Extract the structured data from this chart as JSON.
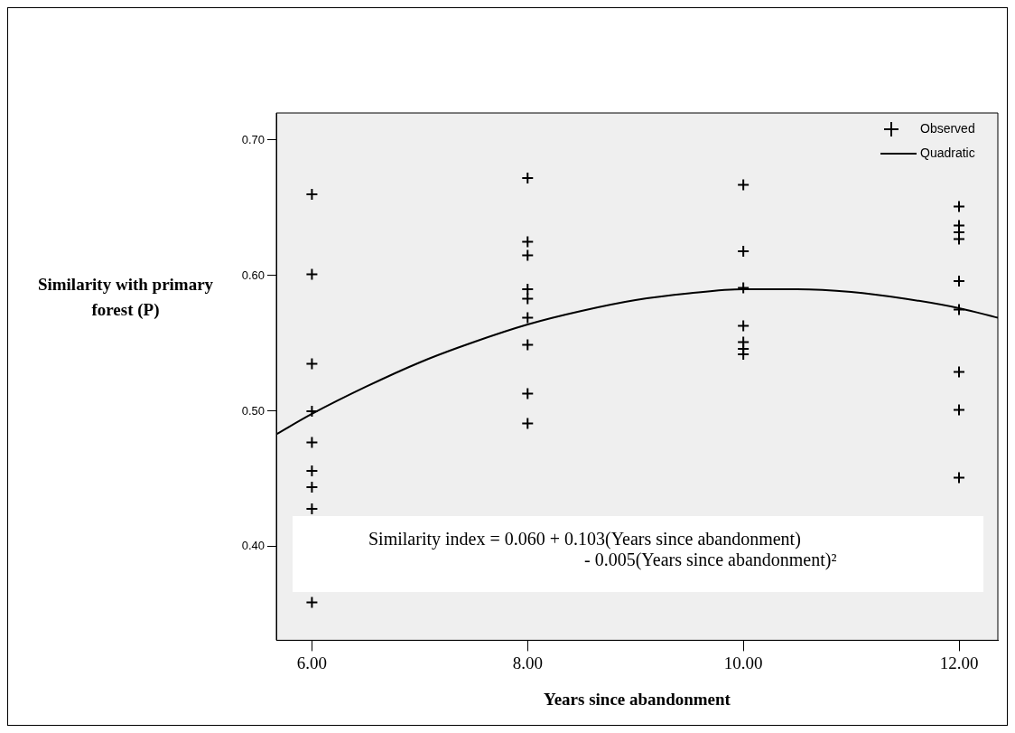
{
  "chart_data": {
    "type": "scatter",
    "xlabel": "Years since abandonment",
    "ylabel": "Similarity with primary\nforest (P)",
    "xlim": [
      5.67,
      12.36
    ],
    "ylim": [
      0.331,
      0.72
    ],
    "xticks": [
      {
        "value": 6,
        "label": "6.00"
      },
      {
        "value": 8,
        "label": "8.00"
      },
      {
        "value": 10,
        "label": "10.00"
      },
      {
        "value": 12,
        "label": "12.00"
      }
    ],
    "yticks": [
      {
        "value": 0.4,
        "label": "0.40"
      },
      {
        "value": 0.5,
        "label": "0.50"
      },
      {
        "value": 0.6,
        "label": "0.60"
      },
      {
        "value": 0.7,
        "label": "0.70"
      }
    ],
    "grid": false,
    "legend": "top right",
    "annotations": [
      {
        "text": "Similarity index = 0.060 + 0.103(Years since abandonment)\n- 0.005(Years since abandonment)²"
      }
    ],
    "series": [
      {
        "name": "Observed",
        "marker": "cross",
        "color": "#000000",
        "x": [
          6,
          6,
          6,
          6,
          6,
          6,
          6,
          6,
          6,
          8,
          8,
          8,
          8,
          8,
          8,
          8,
          8,
          8,
          10,
          10,
          10,
          10,
          10,
          10,
          10,
          12,
          12,
          12,
          12,
          12,
          12,
          12,
          12,
          12
        ],
        "values": [
          0.66,
          0.601,
          0.535,
          0.5,
          0.477,
          0.456,
          0.444,
          0.428,
          0.359,
          0.672,
          0.625,
          0.615,
          0.59,
          0.583,
          0.569,
          0.549,
          0.513,
          0.491,
          0.667,
          0.618,
          0.591,
          0.563,
          0.551,
          0.546,
          0.542,
          0.651,
          0.637,
          0.632,
          0.627,
          0.596,
          0.575,
          0.529,
          0.501,
          0.451
        ]
      },
      {
        "name": "Quadratic",
        "type": "line",
        "marker": "none",
        "line_style": "solid",
        "color": "#000000",
        "x": [
          5.67,
          6,
          6.5,
          7,
          7.5,
          8,
          8.5,
          9,
          9.5,
          10,
          10.5,
          11,
          11.5,
          12,
          12.36
        ],
        "values": [
          0.483,
          0.498,
          0.518,
          0.536,
          0.551,
          0.564,
          0.574,
          0.582,
          0.587,
          0.59,
          0.59,
          0.588,
          0.583,
          0.576,
          0.569
        ]
      }
    ]
  }
}
